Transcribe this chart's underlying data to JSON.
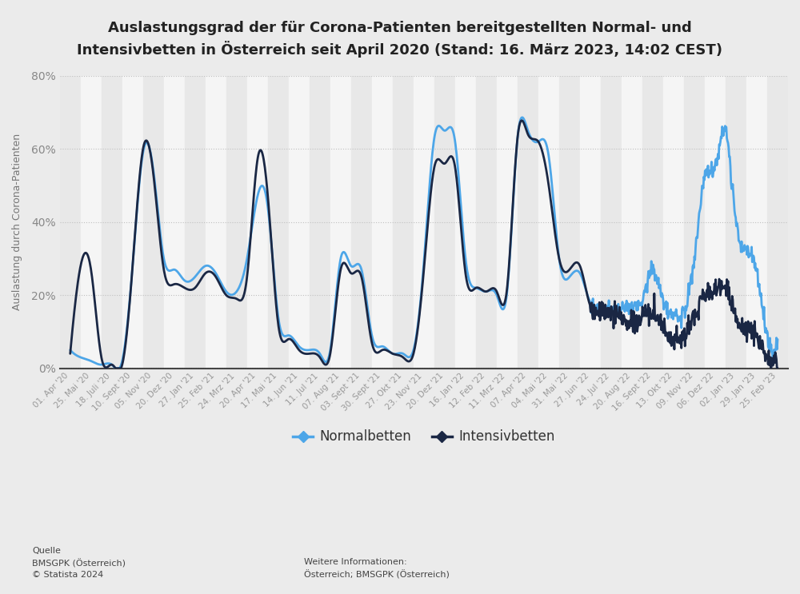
{
  "title": "Auslastungsgrad der für Corona-Patienten bereitgestellten Normal- und\nIntensivbetten in Österreich seit April 2020 (Stand: 16. März 2023, 14:02 CEST)",
  "ylabel": "Auslastung durch Corona-Patienten",
  "color_normal": "#4da6e8",
  "color_intensiv": "#1a2744",
  "background_color": "#ebebeb",
  "plot_bg_color": "#f5f5f5",
  "ylim": [
    0,
    80
  ],
  "yticks": [
    0,
    20,
    40,
    60,
    80
  ],
  "ytick_labels": [
    "0%",
    "20%",
    "40%",
    "60%",
    "80%"
  ],
  "legend_labels": [
    "Normalbetten",
    "Intensivbetten"
  ],
  "source_text": "Quelle\nBMSGPK (Österreich)\n© Statista 2024",
  "info_text": "Weitere Informationen:\nÖsterreich; BMSGPK (Österreich)",
  "tick_labels": [
    "01. Apr '20",
    "25. Mai '20",
    "18. Juli '20",
    "10. Sept '20",
    "05. Nov '20",
    "20. Dez '20",
    "27. Jan '21",
    "25. Feb '21",
    "24. Mrz '21",
    "20. Apr '21",
    "17. Mai '21",
    "14. Jun '21",
    "11. Jul '21",
    "07. Aug '21",
    "03. Sept '21",
    "30. Sept '21",
    "27. Okt '21",
    "23. Nov '21",
    "20. Dez '21",
    "16. Jan '22",
    "12. Feb '22",
    "11. Mrz '22",
    "07. Apr '22",
    "04. Mai '22",
    "31. Mai '22",
    "27. Jun '22",
    "24. Jul '22",
    "20. Aug '22",
    "16. Sept '22",
    "13. Okt '22",
    "09. Nov '22",
    "06. Dez '22",
    "02. Jan '23",
    "29. Jan '23",
    "25. Feb '23"
  ],
  "normal_values": [
    5,
    3,
    2,
    1,
    1,
    2,
    28,
    59,
    54,
    30,
    27,
    24,
    25,
    28,
    26,
    21,
    21,
    30,
    47,
    44,
    14,
    9,
    6,
    5,
    4,
    5,
    30,
    28,
    27,
    9,
    6,
    4,
    4,
    5,
    29,
    63,
    65,
    62,
    30,
    22,
    21,
    20,
    21,
    63,
    65,
    62,
    58,
    30,
    25,
    26,
    18,
    17,
    16,
    16,
    17,
    19,
    27,
    18,
    15,
    16,
    30,
    52,
    55,
    65,
    40,
    32,
    26,
    9,
    7
  ],
  "intensiv_values": [
    4,
    28,
    27,
    3,
    1,
    1,
    28,
    60,
    53,
    27,
    23,
    22,
    22,
    26,
    25,
    20,
    19,
    25,
    57,
    47,
    12,
    8,
    5,
    4,
    3,
    4,
    27,
    26,
    25,
    7,
    5,
    4,
    3,
    4,
    27,
    55,
    56,
    55,
    26,
    22,
    21,
    21,
    22,
    63,
    64,
    62,
    50,
    30,
    27,
    28,
    17,
    16,
    15,
    14,
    13,
    14,
    15,
    11,
    8,
    9,
    14,
    20,
    21,
    22,
    14,
    11,
    9,
    3,
    3
  ],
  "n_ticks": 35
}
